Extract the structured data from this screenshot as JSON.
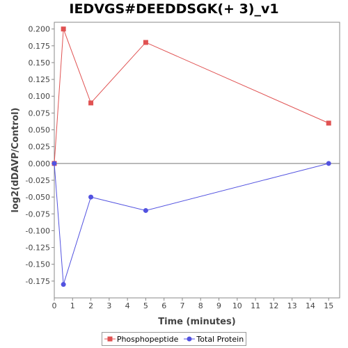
{
  "chart_data": {
    "type": "line",
    "title": "IEDVGS#DEEDDSGK(+ 3)_v1",
    "xlabel": "Time (minutes)",
    "ylabel": "log2(dDAVP/Control)",
    "xlim": [
      0,
      15.6
    ],
    "ylim": [
      -0.2,
      0.21
    ],
    "x_ticks": [
      0,
      1,
      2,
      3,
      4,
      5,
      6,
      7,
      8,
      9,
      10,
      11,
      12,
      13,
      14,
      15
    ],
    "y_ticks": [
      0.2,
      0.175,
      0.15,
      0.125,
      0.1,
      0.075,
      0.05,
      0.025,
      0.0,
      -0.025,
      -0.05,
      -0.075,
      -0.1,
      -0.125,
      -0.15,
      -0.175
    ],
    "y_tick_labels": [
      "0.200",
      "0.175",
      "0.150",
      "0.125",
      "0.100",
      "0.075",
      "0.050",
      "0.025",
      "0.000",
      "-0.025",
      "-0.050",
      "-0.075",
      "-0.100",
      "-0.125",
      "-0.150",
      "-0.175"
    ],
    "zero_line": true,
    "grid": false,
    "legend_position": "bottom",
    "series": [
      {
        "name": "Phosphopeptide",
        "color": "#e05252",
        "marker": "square",
        "x": [
          0,
          0.5,
          2,
          5,
          15
        ],
        "y": [
          0.0,
          0.2,
          0.09,
          0.18,
          0.06
        ]
      },
      {
        "name": "Total Protein",
        "color": "#5252e0",
        "marker": "circle",
        "x": [
          0,
          0.5,
          2,
          5,
          15
        ],
        "y": [
          0.0,
          -0.18,
          -0.05,
          -0.07,
          0.0
        ]
      }
    ]
  }
}
